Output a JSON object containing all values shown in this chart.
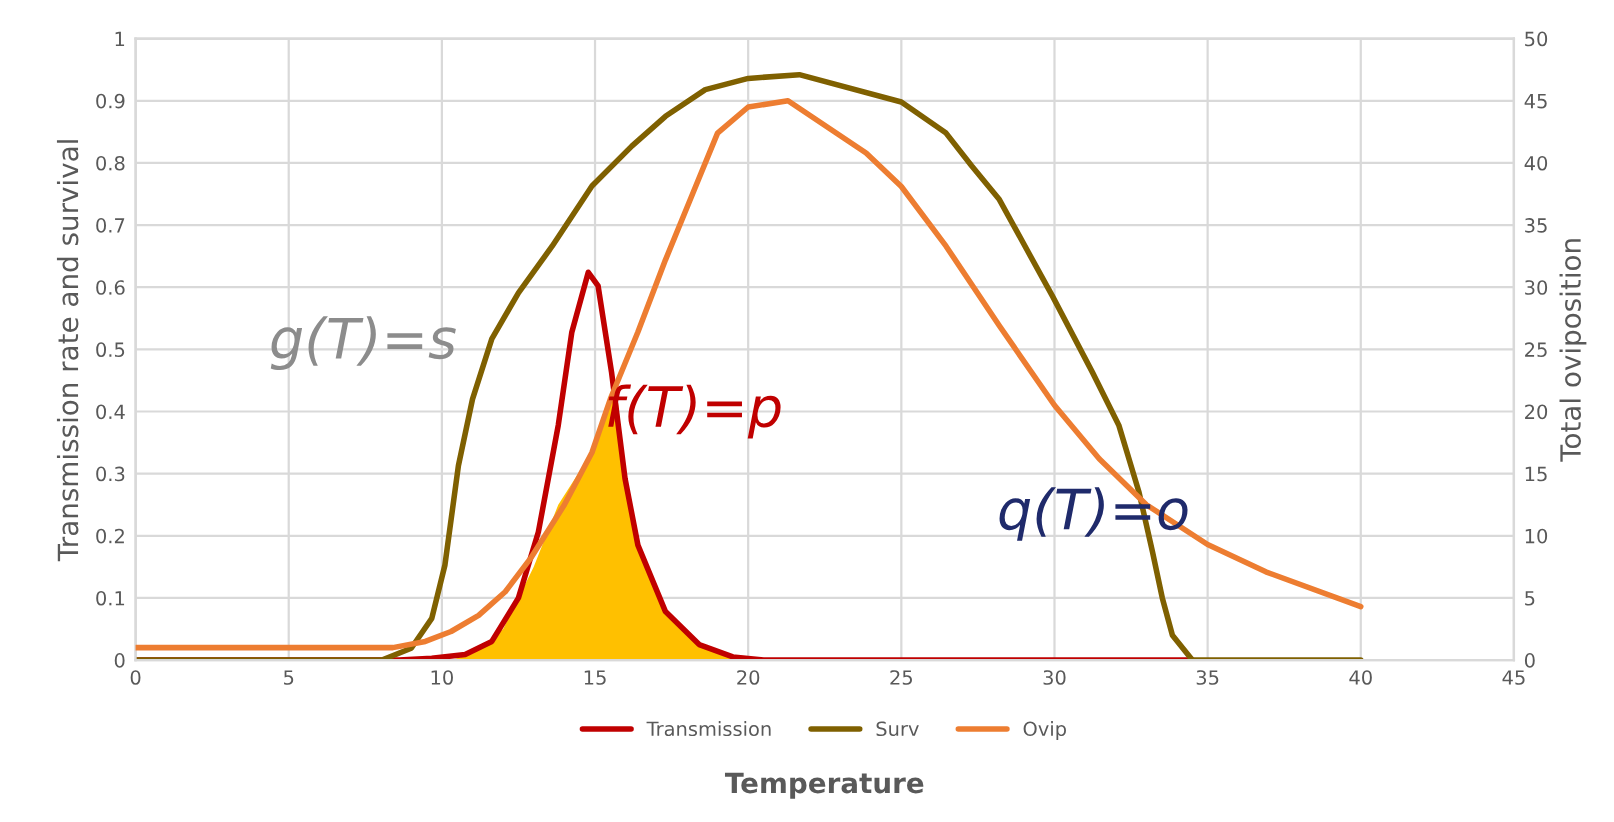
{
  "chart_data": {
    "type": "line",
    "xlabel": "Temperature",
    "ylabel": "Transmission rate and survival",
    "y2label": "Total oviposition",
    "xlim": [
      0,
      45
    ],
    "xticks": [
      0,
      5,
      10,
      15,
      20,
      25,
      30,
      35,
      40,
      45
    ],
    "ylim": [
      0,
      1
    ],
    "yticks": [
      0,
      0.1,
      0.2,
      0.3,
      0.4,
      0.5,
      0.6,
      0.7,
      0.8,
      0.9,
      1
    ],
    "y2lim": [
      0,
      50
    ],
    "y2ticks": [
      0,
      5,
      10,
      15,
      20,
      25,
      30,
      35,
      40,
      45,
      50
    ],
    "grid": true,
    "legend": "bottom",
    "line_style": "solid",
    "marker": "none",
    "series": [
      {
        "type": "area",
        "color": "#ffc000",
        "x": [
          10.3,
          11.0,
          12.0,
          13.0,
          13.8,
          14.9,
          15.5,
          15.7,
          16.0,
          16.4,
          17.3,
          18.4,
          19.5,
          20.0
        ],
        "values": [
          0.0,
          0.01,
          0.05,
          0.15,
          0.25,
          0.335,
          0.42,
          0.44,
          0.29,
          0.185,
          0.078,
          0.025,
          0.005,
          0.0
        ]
      },
      {
        "name": "Transmission",
        "color": "#c00000",
        "x": [
          0,
          8.6,
          9.67,
          10.76,
          11.63,
          12.5,
          13.15,
          13.8,
          14.24,
          14.78,
          15.1,
          15.54,
          15.98,
          16.4,
          17.3,
          18.4,
          19.5,
          20.5,
          34.5
        ],
        "values": [
          0,
          0,
          0.003,
          0.009,
          0.03,
          0.1,
          0.206,
          0.378,
          0.527,
          0.624,
          0.602,
          0.463,
          0.292,
          0.185,
          0.078,
          0.025,
          0.005,
          0,
          0
        ]
      },
      {
        "name": "Surv",
        "color": "#7f6000",
        "x": [
          0,
          8.04,
          9.0,
          9.67,
          10.1,
          10.54,
          11.0,
          11.63,
          12.5,
          13.6,
          14.9,
          16.2,
          17.3,
          18.6,
          20.0,
          21.67,
          25.0,
          26.46,
          27.3,
          28.2,
          29.93,
          31.24,
          32.1,
          32.76,
          33.2,
          33.52,
          33.85,
          34.5,
          40
        ],
        "values": [
          0,
          0,
          0.019,
          0.067,
          0.153,
          0.313,
          0.42,
          0.517,
          0.591,
          0.666,
          0.763,
          0.827,
          0.875,
          0.918,
          0.936,
          0.942,
          0.898,
          0.848,
          0.795,
          0.741,
          0.586,
          0.463,
          0.378,
          0.27,
          0.174,
          0.1,
          0.04,
          0,
          0
        ]
      },
      {
        "name": "Ovip",
        "color": "#ed7d31",
        "axis": "y2",
        "x": [
          0,
          8.4,
          9.46,
          10.3,
          11.2,
          12.07,
          12.9,
          14.0,
          14.9,
          15.5,
          16.4,
          17.3,
          18.2,
          19.0,
          20.0,
          21.3,
          23.85,
          25.0,
          26.46,
          28.2,
          30.0,
          31.46,
          33.0,
          35.0,
          36.9,
          40.0
        ],
        "values": [
          1,
          1,
          1.5,
          2.3,
          3.6,
          5.5,
          8.2,
          12.5,
          16.7,
          21,
          26.4,
          32.2,
          37.6,
          42.4,
          44.5,
          45,
          40.8,
          38.1,
          33.3,
          26.9,
          20.5,
          16.2,
          12.5,
          9.3,
          7.1,
          4.3
        ]
      }
    ],
    "annotations": [
      "g(T)=s",
      "f(T)=p",
      "q(T)=o"
    ]
  }
}
